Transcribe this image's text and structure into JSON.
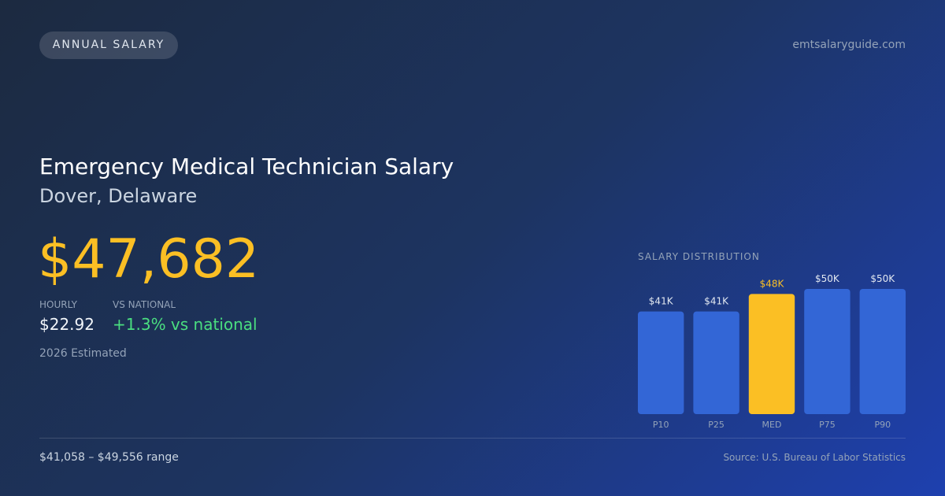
{
  "header": {
    "badge": "ANNUAL SALARY",
    "site": "emtsalaryguide.com"
  },
  "title": "Emergency Medical Technician Salary",
  "location": "Dover, Delaware",
  "salary": "$47,682",
  "stats": [
    {
      "label": "HOURLY",
      "value": "$22.92"
    },
    {
      "label": "VS NATIONAL",
      "value": "+1.3% vs national"
    }
  ],
  "estimate_note": "2026 Estimated",
  "footer": {
    "range": "$41,058 – $49,556 range",
    "source": "Source: U.S. Bureau of Labor Statistics"
  },
  "chart_data": {
    "type": "bar",
    "title": "SALARY DISTRIBUTION",
    "categories": [
      "P10",
      "P25",
      "MED",
      "P75",
      "P90"
    ],
    "values": [
      41,
      41,
      48,
      50,
      50
    ],
    "value_labels": [
      "$41K",
      "$41K",
      "$48K",
      "$50K",
      "$50K"
    ],
    "colors": [
      "#3366d6",
      "#3366d6",
      "#fbbf24",
      "#3366d6",
      "#3366d6"
    ],
    "label_colors": [
      "#e2e8f0",
      "#e2e8f0",
      "#fbbf24",
      "#e2e8f0",
      "#e2e8f0"
    ]
  }
}
